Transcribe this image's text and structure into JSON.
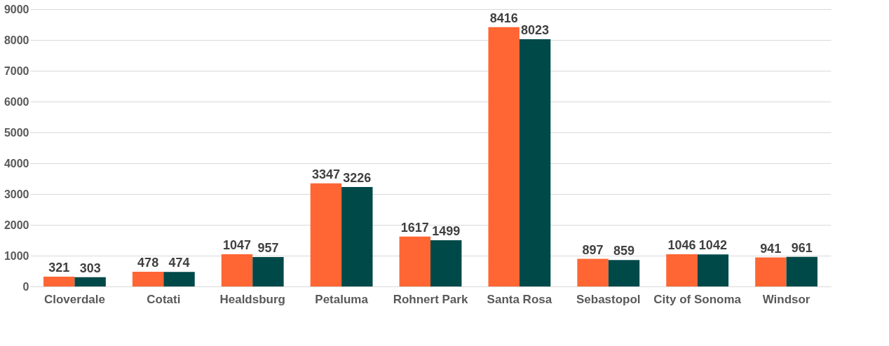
{
  "chart_data": {
    "type": "bar",
    "categories": [
      "Cloverdale",
      "Cotati",
      "Healdsburg",
      "Petaluma",
      "Rohnert Park",
      "Santa Rosa",
      "Sebastopol",
      "City of Sonoma",
      "Windsor"
    ],
    "series": [
      {
        "color": "#ff6633",
        "values": [
          321,
          478,
          1047,
          3347,
          1617,
          8416,
          897,
          1046,
          941
        ]
      },
      {
        "color": "#004949",
        "values": [
          303,
          474,
          957,
          3226,
          1499,
          8023,
          859,
          1042,
          961
        ]
      }
    ],
    "ylim": [
      0,
      9000
    ],
    "yticks": [
      0,
      1000,
      2000,
      3000,
      4000,
      5000,
      6000,
      7000,
      8000,
      9000
    ],
    "grid": "y",
    "data_labels": true,
    "legend": false
  }
}
